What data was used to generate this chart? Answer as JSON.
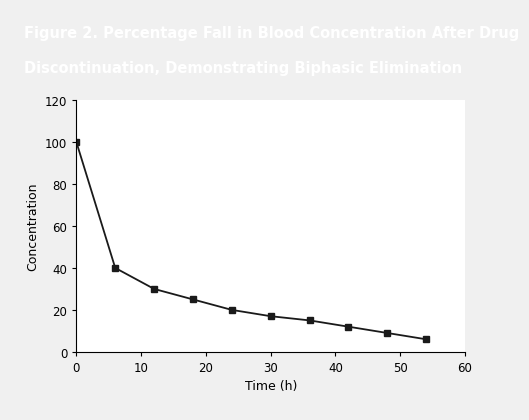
{
  "x": [
    0,
    6,
    12,
    18,
    24,
    30,
    36,
    42,
    48,
    54
  ],
  "y": [
    100,
    40,
    30,
    25,
    20,
    17,
    15,
    12,
    9,
    6
  ],
  "xlabel": "Time (h)",
  "ylabel": "Concentration",
  "xlim": [
    0,
    60
  ],
  "ylim": [
    0,
    120
  ],
  "xticks": [
    0,
    10,
    20,
    30,
    40,
    50,
    60
  ],
  "yticks": [
    0,
    20,
    40,
    60,
    80,
    100,
    120
  ],
  "line_color": "#1a1a1a",
  "marker": "s",
  "marker_size": 4,
  "marker_color": "#1a1a1a",
  "title_line1": "Figure 2. Percentage Fall in Blood Concentration After Drug",
  "title_line2": "Discontinuation, Demonstrating Biphasic Elimination",
  "title_bg_color": "#1b5580",
  "title_text_color": "#ffffff",
  "plot_bg_color": "#ffffff",
  "outer_bg_color": "#f0f0f0",
  "bottom_bar_color": "#6baed6",
  "axis_label_fontsize": 9,
  "tick_fontsize": 8.5,
  "title_fontsize": 10.5
}
